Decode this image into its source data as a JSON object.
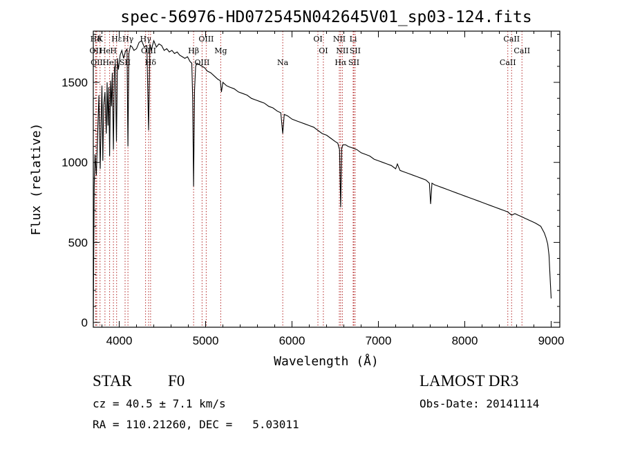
{
  "chart_data": {
    "type": "line",
    "title": "spec-56976-HD072545N042645V01_sp03-124.fits",
    "xlabel": "Wavelength (Å)",
    "ylabel": "Flux (relative)",
    "xlim": [
      3700,
      9100
    ],
    "ylim": [
      -30,
      1820
    ],
    "xticks": [
      4000,
      5000,
      6000,
      7000,
      8000,
      9000
    ],
    "yticks": [
      0,
      500,
      1000,
      1500
    ],
    "series": [
      {
        "name": "flux",
        "x": [
          3700,
          3710,
          3720,
          3735,
          3750,
          3765,
          3780,
          3790,
          3800,
          3810,
          3820,
          3835,
          3850,
          3860,
          3870,
          3880,
          3889,
          3900,
          3910,
          3920,
          3933,
          3945,
          3955,
          3968,
          3980,
          3990,
          4000,
          4010,
          4030,
          4050,
          4070,
          4090,
          4101,
          4112,
          4130,
          4150,
          4170,
          4200,
          4230,
          4260,
          4290,
          4320,
          4340,
          4355,
          4370,
          4400,
          4430,
          4460,
          4490,
          4520,
          4550,
          4580,
          4610,
          4640,
          4670,
          4700,
          4730,
          4760,
          4790,
          4820,
          4840,
          4850,
          4861,
          4872,
          4885,
          4900,
          4930,
          4960,
          4990,
          5020,
          5060,
          5100,
          5140,
          5170,
          5183,
          5200,
          5240,
          5280,
          5330,
          5380,
          5430,
          5480,
          5530,
          5580,
          5630,
          5680,
          5730,
          5780,
          5830,
          5870,
          5893,
          5910,
          5950,
          6000,
          6050,
          6100,
          6150,
          6200,
          6250,
          6300,
          6350,
          6400,
          6450,
          6500,
          6530,
          6550,
          6563,
          6575,
          6590,
          6620,
          6650,
          6700,
          6750,
          6800,
          6850,
          6900,
          6950,
          7000,
          7050,
          7100,
          7150,
          7200,
          7220,
          7250,
          7300,
          7350,
          7400,
          7450,
          7500,
          7550,
          7590,
          7605,
          7620,
          7650,
          7700,
          7750,
          7800,
          7850,
          7900,
          7950,
          8000,
          8050,
          8100,
          8150,
          8200,
          8250,
          8300,
          8350,
          8400,
          8450,
          8498,
          8542,
          8580,
          8620,
          8662,
          8700,
          8740,
          8780,
          8820,
          8850,
          8880,
          8900,
          8920,
          8940,
          8960,
          8975,
          8990,
          9000
        ],
        "values": [
          20,
          850,
          1050,
          920,
          1180,
          1420,
          960,
          1250,
          1480,
          1010,
          1350,
          1440,
          1180,
          1500,
          1230,
          1470,
          1040,
          1510,
          1350,
          1560,
          1080,
          1590,
          1610,
          1130,
          1650,
          1580,
          1620,
          1670,
          1700,
          1650,
          1690,
          1710,
          1100,
          1680,
          1730,
          1720,
          1700,
          1710,
          1750,
          1760,
          1720,
          1730,
          1200,
          1740,
          1700,
          1760,
          1720,
          1740,
          1730,
          1700,
          1710,
          1690,
          1700,
          1680,
          1690,
          1670,
          1660,
          1650,
          1660,
          1630,
          1620,
          1400,
          850,
          1450,
          1600,
          1620,
          1610,
          1600,
          1590,
          1570,
          1560,
          1540,
          1520,
          1510,
          1440,
          1500,
          1480,
          1470,
          1460,
          1440,
          1430,
          1420,
          1400,
          1390,
          1380,
          1370,
          1350,
          1340,
          1320,
          1310,
          1180,
          1300,
          1290,
          1270,
          1260,
          1250,
          1240,
          1230,
          1220,
          1200,
          1180,
          1170,
          1150,
          1130,
          1120,
          1080,
          720,
          1090,
          1110,
          1110,
          1100,
          1090,
          1080,
          1060,
          1050,
          1040,
          1020,
          1010,
          1000,
          990,
          980,
          960,
          990,
          950,
          940,
          930,
          920,
          910,
          900,
          890,
          870,
          740,
          870,
          860,
          850,
          840,
          830,
          820,
          810,
          800,
          790,
          780,
          770,
          760,
          750,
          740,
          730,
          720,
          710,
          700,
          690,
          670,
          680,
          670,
          660,
          650,
          640,
          630,
          620,
          610,
          600,
          580,
          560,
          530,
          490,
          420,
          250,
          150
        ]
      }
    ],
    "spectral_lines": [
      {
        "label": "Hδ",
        "x": 3730
      },
      {
        "label": "OII",
        "x": 3727
      },
      {
        "label": "OII",
        "x": 3740
      },
      {
        "label": "K",
        "x": 3778
      },
      {
        "label": "He",
        "x": 3835
      },
      {
        "label": "HeI",
        "x": 3889
      },
      {
        "label": "Hε",
        "x": 3970
      },
      {
        "label": "H",
        "x": 3933
      },
      {
        "label": "SII",
        "x": 4068
      },
      {
        "label": "Hγ",
        "x": 4101
      },
      {
        "label": "OIII",
        "x": 4340
      },
      {
        "label": "Hδ",
        "x": 4363
      },
      {
        "label": "Hγ",
        "x": 4305
      },
      {
        "label": "Hβ",
        "x": 4861
      },
      {
        "label": "OIII",
        "x": 4959
      },
      {
        "label": "OIII",
        "x": 5007
      },
      {
        "label": "Mg",
        "x": 5175
      },
      {
        "label": "Na",
        "x": 5893
      },
      {
        "label": "OI",
        "x": 6300
      },
      {
        "label": "OI",
        "x": 6363
      },
      {
        "label": "Hα",
        "x": 6563
      },
      {
        "label": "NII",
        "x": 6548
      },
      {
        "label": "NII",
        "x": 6583
      },
      {
        "label": "SII",
        "x": 6716
      },
      {
        "label": "Li",
        "x": 6708
      },
      {
        "label": "SII",
        "x": 6731
      },
      {
        "label": "CaII",
        "x": 8498
      },
      {
        "label": "CaII",
        "x": 8542
      },
      {
        "label": "CaII",
        "x": 8662
      }
    ]
  },
  "info": {
    "object_type": "STAR",
    "subclass": "F0",
    "cz_line": "cz = 40.5 ± 7.1 km/s",
    "coords_line": "RA = 110.21260, DEC =   5.03011",
    "survey": "LAMOST DR3",
    "obs_date": "Obs-Date: 20141114"
  },
  "colors": {
    "line_marker": "#b22222",
    "spectrum": "#000000"
  }
}
